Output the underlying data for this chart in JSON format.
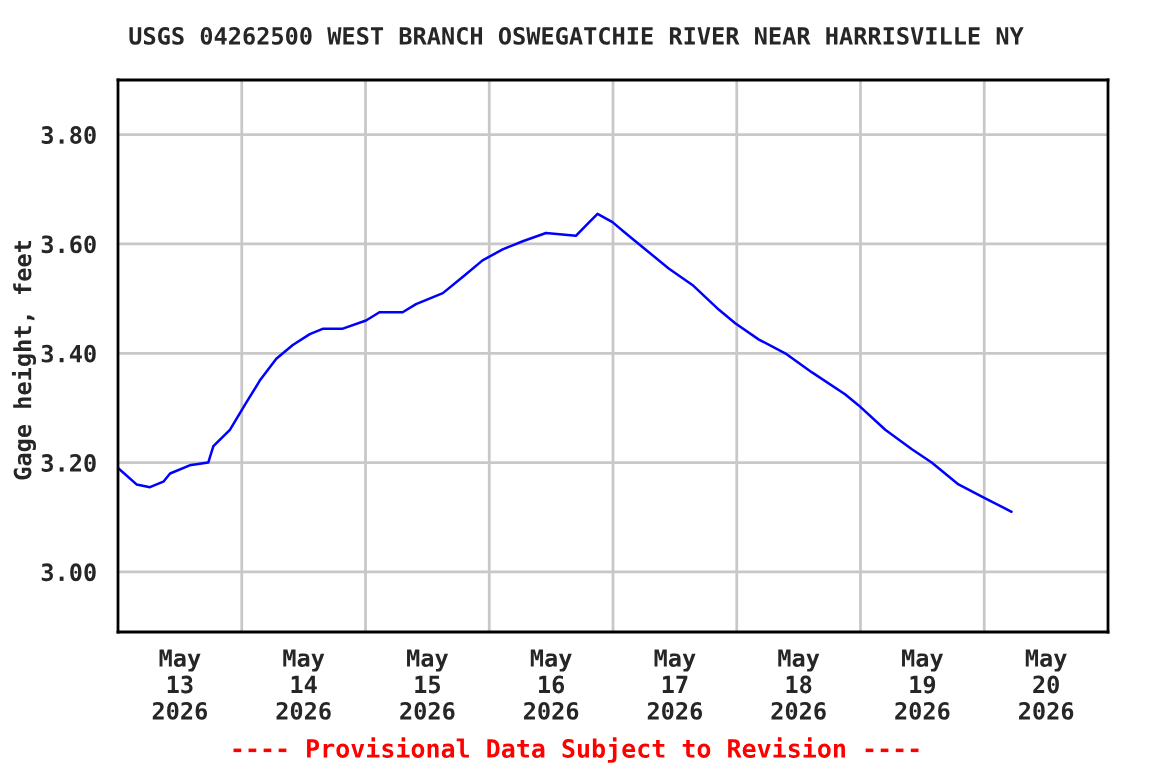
{
  "chart_data": {
    "type": "line",
    "title": "USGS 04262500 WEST BRANCH OSWEGATCHIE RIVER NEAR HARRISVILLE NY",
    "ylabel": "Gage height, feet",
    "annotations": [
      "---- Provisional Data Subject to Revision ----"
    ],
    "x": [
      "2026-05-13T00:00",
      "2026-05-13T03:36",
      "2026-05-13T06:12",
      "2026-05-13T08:48",
      "2026-05-13T10:06",
      "2026-05-13T13:54",
      "2026-05-13T17:30",
      "2026-05-13T18:30",
      "2026-05-13T21:42",
      "2026-05-14T00:54",
      "2026-05-14T03:30",
      "2026-05-14T06:42",
      "2026-05-14T09:54",
      "2026-05-14T13:12",
      "2026-05-14T15:48",
      "2026-05-14T19:36",
      "2026-05-15T00:06",
      "2026-05-15T02:42",
      "2026-05-15T07:12",
      "2026-05-15T09:48",
      "2026-05-15T15:00",
      "2026-05-15T18:54",
      "2026-05-15T22:42",
      "2026-05-16T02:36",
      "2026-05-16T06:30",
      "2026-05-16T11:00",
      "2026-05-16T16:48",
      "2026-05-16T19:24",
      "2026-05-16T21:00",
      "2026-05-16T23:54",
      "2026-05-17T02:24",
      "2026-05-17T06:18",
      "2026-05-17T10:48",
      "2026-05-17T15:24",
      "2026-05-17T20:30",
      "2026-05-17T23:42",
      "2026-05-18T04:18",
      "2026-05-18T09:24",
      "2026-05-18T14:36",
      "2026-05-18T21:00",
      "2026-05-18T23:36",
      "2026-05-19T04:48",
      "2026-05-19T09:54",
      "2026-05-19T13:48",
      "2026-05-19T19:00",
      "2026-05-20T00:06",
      "2026-05-20T05:18"
    ],
    "series": [
      {
        "color": "#0000ff",
        "values": [
          3.19,
          3.16,
          3.155,
          3.165,
          3.18,
          3.195,
          3.2,
          3.23,
          3.26,
          3.31,
          3.35,
          3.39,
          3.415,
          3.435,
          3.445,
          3.445,
          3.46,
          3.475,
          3.475,
          3.49,
          3.51,
          3.54,
          3.57,
          3.59,
          3.605,
          3.62,
          3.615,
          3.64,
          3.655,
          3.64,
          3.62,
          3.59,
          3.555,
          3.525,
          3.48,
          3.455,
          3.425,
          3.4,
          3.365,
          3.325,
          3.305,
          3.26,
          3.225,
          3.2,
          3.16,
          3.135,
          3.11
        ]
      }
    ],
    "xlim": [
      "2026-05-13T00:00",
      "2026-05-21T00:00"
    ],
    "xticks": [
      {
        "value": "2026-05-14T00:00",
        "label": null
      },
      {
        "value": "2026-05-15T00:00",
        "label": null
      },
      {
        "value": "2026-05-16T00:00",
        "label": null
      },
      {
        "value": "2026-05-17T00:00",
        "label": null
      },
      {
        "value": "2026-05-18T00:00",
        "label": null
      },
      {
        "value": "2026-05-19T00:00",
        "label": null
      },
      {
        "value": "2026-05-20T00:00",
        "label": null
      },
      {
        "value": "2026-05-13T12:00",
        "label": "May\n13\n2026"
      },
      {
        "value": "2026-05-14T12:00",
        "label": "May\n14\n2026"
      },
      {
        "value": "2026-05-15T12:00",
        "label": "May\n15\n2026"
      },
      {
        "value": "2026-05-16T12:00",
        "label": "May\n16\n2026"
      },
      {
        "value": "2026-05-17T12:00",
        "label": "May\n17\n2026"
      },
      {
        "value": "2026-05-18T12:00",
        "label": "May\n18\n2026"
      },
      {
        "value": "2026-05-19T12:00",
        "label": "May\n19\n2026"
      },
      {
        "value": "2026-05-20T12:00",
        "label": "May\n20\n2026"
      }
    ],
    "ylim": [
      2.89,
      3.9
    ],
    "yticks": [
      {
        "value": 3.0,
        "label": "3.00"
      },
      {
        "value": 3.2,
        "label": "3.20"
      },
      {
        "value": 3.4,
        "label": "3.40"
      },
      {
        "value": 3.6,
        "label": "3.60"
      },
      {
        "value": 3.8,
        "label": "3.80"
      }
    ],
    "grid": true
  }
}
